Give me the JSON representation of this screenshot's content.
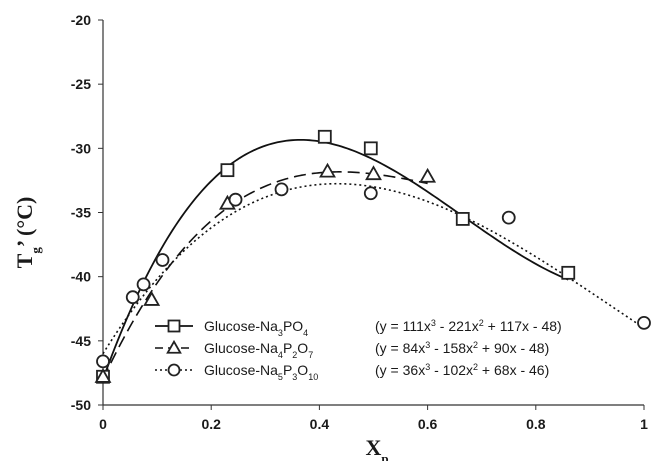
{
  "chart_data": {
    "type": "scatter",
    "xlabel": "X",
    "xlabel_sub": "p",
    "ylabel": "T",
    "ylabel_sub": "g",
    "ylabel_suffix": "’ (°C)",
    "xlim": [
      0,
      1
    ],
    "ylim": [
      -50,
      -20
    ],
    "xticks": [
      "0",
      "0.2",
      "0.4",
      "0.6",
      "0.8",
      "1"
    ],
    "yticks": [
      "-20",
      "-25",
      "-30",
      "-35",
      "-40",
      "-45",
      "-50"
    ],
    "grid": false,
    "legend_position": "bottom-right",
    "series": [
      {
        "name": "Glucose-Na3PO4",
        "name_parts": [
          [
            "Glucose-Na",
            ""
          ],
          [
            "3",
            "sub"
          ],
          [
            "PO",
            ""
          ],
          [
            "4",
            "sub"
          ]
        ],
        "equation_parts": [
          [
            "(y = 111x",
            ""
          ],
          [
            "3",
            "sup"
          ],
          [
            " - 221x",
            ""
          ],
          [
            "2",
            "sup"
          ],
          [
            " + 117x - 48)",
            ""
          ]
        ],
        "marker": "square",
        "line_style": "solid",
        "fit_coefficients": [
          111,
          -221,
          117,
          -48
        ],
        "x": [
          0,
          0.23,
          0.41,
          0.495,
          0.665,
          0.86
        ],
        "y": [
          -47.8,
          -31.7,
          -29.1,
          -30.0,
          -35.5,
          -39.7
        ]
      },
      {
        "name": "Glucose-Na4P2O7",
        "name_parts": [
          [
            "Glucose-Na",
            ""
          ],
          [
            "4",
            "sub"
          ],
          [
            "P",
            ""
          ],
          [
            "2",
            "sub"
          ],
          [
            "O",
            ""
          ],
          [
            "7",
            "sub"
          ]
        ],
        "equation_parts": [
          [
            "(y = 84x",
            ""
          ],
          [
            "3",
            "sup"
          ],
          [
            " - 158x",
            ""
          ],
          [
            "2",
            "sup"
          ],
          [
            " + 90x - 48)",
            ""
          ]
        ],
        "marker": "triangle",
        "line_style": "dashed",
        "fit_coefficients": [
          84,
          -158,
          90,
          -48
        ],
        "x": [
          0,
          0.09,
          0.23,
          0.415,
          0.5,
          0.6
        ],
        "y": [
          -47.8,
          -41.8,
          -34.3,
          -31.8,
          -32.0,
          -32.2
        ]
      },
      {
        "name": "Glucose-Na5P3O10",
        "name_parts": [
          [
            "Glucose-Na",
            ""
          ],
          [
            "5",
            "sub"
          ],
          [
            "P",
            ""
          ],
          [
            "3",
            "sub"
          ],
          [
            "O",
            ""
          ],
          [
            "10",
            "sub"
          ]
        ],
        "equation_parts": [
          [
            "(y = 36x",
            ""
          ],
          [
            "3",
            "sup"
          ],
          [
            " - 102x",
            ""
          ],
          [
            "2",
            "sup"
          ],
          [
            " + 68x - 46)",
            ""
          ]
        ],
        "marker": "circle",
        "line_style": "dotted",
        "fit_coefficients": [
          36,
          -102,
          68,
          -46
        ],
        "x": [
          0,
          0.055,
          0.075,
          0.11,
          0.245,
          0.33,
          0.495,
          0.75,
          1.0
        ],
        "y": [
          -46.6,
          -41.6,
          -40.6,
          -38.7,
          -34.0,
          -33.2,
          -33.5,
          -35.4,
          -43.6
        ]
      }
    ]
  }
}
